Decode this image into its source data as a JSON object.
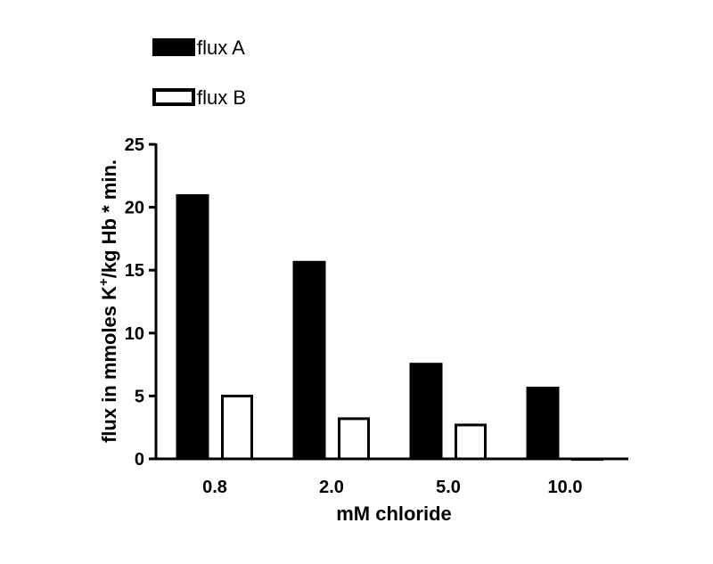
{
  "chart_data": {
    "type": "bar",
    "categories": [
      "0.8",
      "2.0",
      "5.0",
      "10.0"
    ],
    "series": [
      {
        "name": "flux A",
        "values": [
          21.0,
          15.7,
          7.6,
          5.7
        ],
        "color": "#000000",
        "fill": "solid"
      },
      {
        "name": "flux B",
        "values": [
          5.1,
          3.3,
          2.8,
          0.1
        ],
        "color": "#000000",
        "fill": "hollow"
      }
    ],
    "title": "",
    "xlabel": "mM chloride",
    "ylabel_parts": {
      "before": "flux in mmoles K",
      "sup": "+",
      "after": "/kg Hb * min."
    },
    "ylim": [
      0,
      25
    ],
    "yticks": [
      "0",
      "5",
      "10",
      "15",
      "20",
      "25"
    ],
    "grid": false,
    "legend_position": "top-left"
  }
}
